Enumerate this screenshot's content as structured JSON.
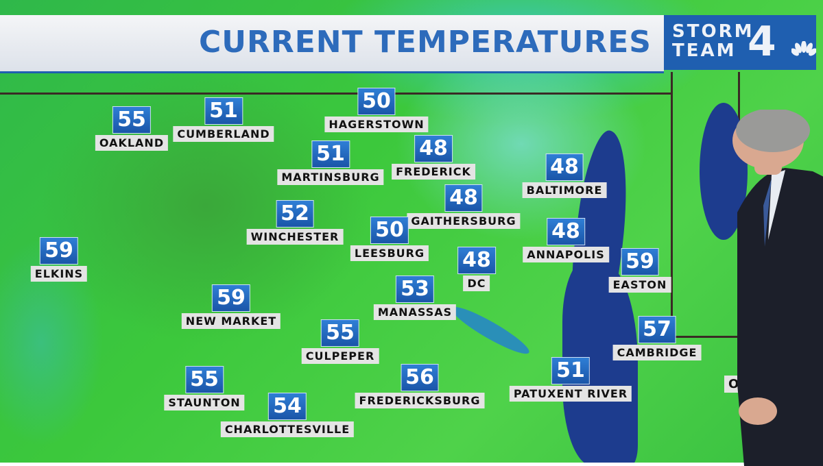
{
  "title": "CURRENT TEMPERATURES",
  "logo": {
    "line1": "STORM",
    "line2": "TEAM",
    "number": "4",
    "network_icon": "peacock-icon"
  },
  "colors": {
    "header_text": "#2d6bbb",
    "logo_bg": "#1f5fb0",
    "temp_badge": "#1f5fb0",
    "land": "#3cc83c",
    "water": "#1d3c8e"
  },
  "cities": [
    {
      "name": "OAKLAND",
      "temp": "55"
    },
    {
      "name": "CUMBERLAND",
      "temp": "51"
    },
    {
      "name": "HAGERSTOWN",
      "temp": "50"
    },
    {
      "name": "MARTINSBURG",
      "temp": "51"
    },
    {
      "name": "FREDERICK",
      "temp": "48"
    },
    {
      "name": "BALTIMORE",
      "temp": "48"
    },
    {
      "name": "GAITHERSBURG",
      "temp": "48"
    },
    {
      "name": "WINCHESTER",
      "temp": "52"
    },
    {
      "name": "LEESBURG",
      "temp": "50"
    },
    {
      "name": "ANNAPOLIS",
      "temp": "48"
    },
    {
      "name": "DC",
      "temp": "48"
    },
    {
      "name": "ELKINS",
      "temp": "59"
    },
    {
      "name": "EASTON",
      "temp": "59"
    },
    {
      "name": "MANASSAS",
      "temp": "53"
    },
    {
      "name": "NEW MARKET",
      "temp": "59"
    },
    {
      "name": "CAMBRIDGE",
      "temp": "57"
    },
    {
      "name": "CULPEPER",
      "temp": "55"
    },
    {
      "name": "PATUXENT RIVER",
      "temp": "51"
    },
    {
      "name": "FREDERICKSBURG",
      "temp": "56"
    },
    {
      "name": "STAUNTON",
      "temp": "55"
    },
    {
      "name": "CHARLOTTESVILLE",
      "temp": "54"
    }
  ],
  "partial_label": "OCE"
}
